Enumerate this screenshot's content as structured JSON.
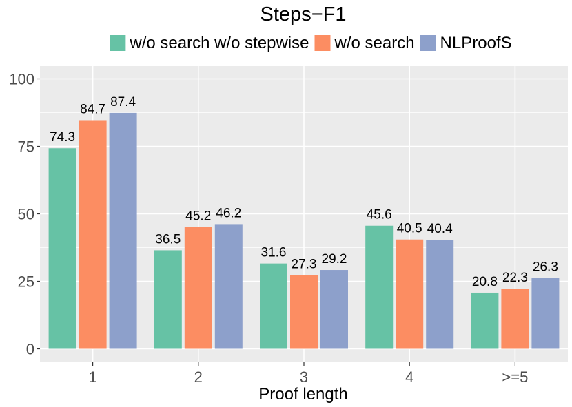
{
  "chart_data": {
    "type": "bar",
    "title": "Steps−F1",
    "xlabel": "Proof length",
    "ylabel": "",
    "ylim": [
      0,
      105
    ],
    "yticks": [
      0,
      25,
      50,
      75,
      100
    ],
    "grid": true,
    "legend_position": "top",
    "categories": [
      "1",
      "2",
      "3",
      "4",
      ">=5"
    ],
    "series": [
      {
        "name": "w/o search w/o stepwise",
        "color": "#66c2a5",
        "values": [
          74.3,
          36.5,
          31.6,
          45.6,
          20.8
        ]
      },
      {
        "name": "w/o search",
        "color": "#fc8d62",
        "values": [
          84.7,
          45.2,
          27.3,
          40.5,
          22.3
        ]
      },
      {
        "name": "NLProofS",
        "color": "#8da0cb",
        "values": [
          87.4,
          46.2,
          29.2,
          40.4,
          26.3
        ]
      }
    ],
    "panel_background": "#ebebeb",
    "grid_color": "#ffffff"
  }
}
